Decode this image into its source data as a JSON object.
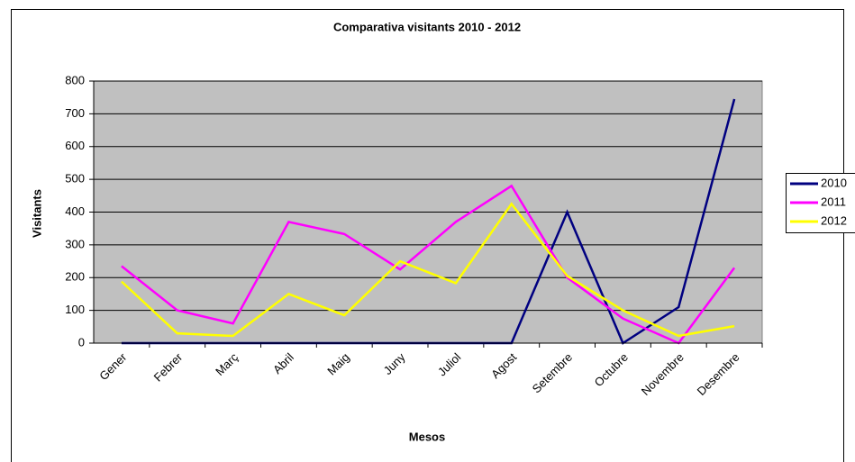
{
  "chart_data": {
    "type": "line",
    "title": "Comparativa visitants 2010 - 2012",
    "x_label": "Mesos",
    "y_label": "Visitants",
    "categories": [
      "Gener",
      "Febrer",
      "Març",
      "Abril",
      "Maig",
      "Juny",
      "Juliol",
      "Agost",
      "Setembre",
      "Octubre",
      "Novembre",
      "Desembre"
    ],
    "series": [
      {
        "name": "2010",
        "color": "#000080",
        "values": [
          0,
          0,
          0,
          0,
          0,
          0,
          0,
          0,
          400,
          0,
          110,
          745
        ]
      },
      {
        "name": "2011",
        "color": "#ff00ff",
        "values": [
          235,
          100,
          60,
          370,
          333,
          225,
          370,
          480,
          200,
          75,
          0,
          230
        ]
      },
      {
        "name": "2012",
        "color": "#ffff00",
        "values": [
          188,
          30,
          22,
          150,
          85,
          250,
          183,
          425,
          205,
          100,
          22,
          52
        ]
      }
    ],
    "ylim": [
      0,
      800
    ],
    "yticks": [
      0,
      100,
      200,
      300,
      400,
      500,
      600,
      700,
      800
    ],
    "grid": true,
    "legend": "right"
  }
}
